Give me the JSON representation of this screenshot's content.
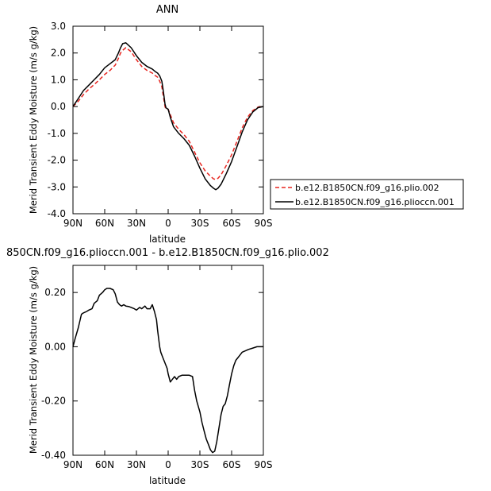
{
  "chart_data": [
    {
      "type": "line",
      "title": "ANN",
      "xlabel": "latitude",
      "ylabel": "Merid Transient Eddy Moisture (m/s g/kg)",
      "xlim": [
        90,
        -90
      ],
      "ylim": [
        -4.0,
        3.0
      ],
      "xticks": [
        90,
        60,
        30,
        0,
        -30,
        -60,
        -90
      ],
      "xtick_labels": [
        "90N",
        "60N",
        "30N",
        "0",
        "30S",
        "60S",
        "90S"
      ],
      "yticks": [
        3.0,
        2.0,
        1.0,
        0.0,
        -1.0,
        -2.0,
        -3.0,
        -4.0
      ],
      "ytick_labels": [
        "3.0",
        "2.0",
        "1.0",
        "0.0",
        "-1.0",
        "-2.0",
        "-3.0",
        "-4.0"
      ],
      "legend_position": "right",
      "series": [
        {
          "name": "b.e12.B1850CN.f09_g16.plio.002",
          "color": "#e8251f",
          "dash": "dashed",
          "x": [
            90,
            85,
            80,
            75,
            70,
            65,
            60,
            55,
            50,
            47,
            45,
            43,
            40,
            35,
            30,
            25,
            20,
            15,
            12,
            10,
            8,
            6,
            5,
            4,
            3,
            2,
            0,
            -2,
            -5,
            -10,
            -15,
            -20,
            -25,
            -30,
            -35,
            -40,
            -43,
            -45,
            -47,
            -50,
            -55,
            -60,
            -65,
            -70,
            -75,
            -80,
            -85,
            -90
          ],
          "y": [
            0.0,
            0.2,
            0.45,
            0.65,
            0.82,
            1.0,
            1.2,
            1.35,
            1.55,
            1.8,
            2.0,
            2.1,
            2.2,
            2.05,
            1.75,
            1.5,
            1.35,
            1.25,
            1.15,
            1.1,
            0.95,
            0.75,
            0.5,
            0.25,
            0.0,
            -0.1,
            -0.1,
            -0.3,
            -0.6,
            -0.85,
            -1.05,
            -1.3,
            -1.7,
            -2.1,
            -2.4,
            -2.6,
            -2.7,
            -2.72,
            -2.68,
            -2.55,
            -2.2,
            -1.8,
            -1.3,
            -0.8,
            -0.4,
            -0.15,
            -0.02,
            0.0
          ]
        },
        {
          "name": "b.e12.B1850CN.f09_g16.plioccn.001",
          "color": "#000000",
          "dash": "solid",
          "x": [
            90,
            85,
            80,
            75,
            70,
            65,
            60,
            55,
            50,
            47,
            45,
            43,
            40,
            35,
            30,
            25,
            20,
            15,
            12,
            10,
            8,
            6,
            5,
            4,
            3,
            2,
            0,
            -2,
            -5,
            -10,
            -15,
            -20,
            -25,
            -30,
            -35,
            -40,
            -43,
            -45,
            -47,
            -50,
            -55,
            -60,
            -65,
            -70,
            -75,
            -80,
            -85,
            -90
          ],
          "y": [
            0.0,
            0.3,
            0.6,
            0.8,
            1.0,
            1.2,
            1.45,
            1.6,
            1.75,
            2.0,
            2.2,
            2.35,
            2.38,
            2.2,
            1.9,
            1.65,
            1.5,
            1.4,
            1.3,
            1.25,
            1.15,
            0.95,
            0.7,
            0.4,
            0.1,
            -0.05,
            -0.1,
            -0.4,
            -0.75,
            -1.0,
            -1.2,
            -1.45,
            -1.85,
            -2.3,
            -2.7,
            -2.95,
            -3.05,
            -3.1,
            -3.05,
            -2.9,
            -2.5,
            -2.05,
            -1.5,
            -0.95,
            -0.5,
            -0.2,
            -0.04,
            0.0
          ]
        }
      ]
    },
    {
      "type": "line",
      "title": "850CN.f09_g16.plioccn.001 - b.e12.B1850CN.f09_g16.plio.002",
      "xlabel": "latitude",
      "ylabel": "Merid Transient Eddy Moisture (m/s g/kg)",
      "xlim": [
        90,
        -90
      ],
      "ylim": [
        -0.4,
        0.3
      ],
      "xticks": [
        90,
        60,
        30,
        0,
        -30,
        -60,
        -90
      ],
      "xtick_labels": [
        "90N",
        "60N",
        "30N",
        "0",
        "30S",
        "60S",
        "90S"
      ],
      "yticks": [
        0.2,
        0.0,
        -0.2,
        -0.4
      ],
      "ytick_labels": [
        "0.20",
        "0.00",
        "-0.20",
        "-0.40"
      ],
      "series": [
        {
          "color": "#000000",
          "dash": "solid",
          "x": [
            90,
            88,
            85,
            82,
            80,
            77,
            75,
            72,
            70,
            67,
            65,
            62,
            60,
            58,
            55,
            52,
            50,
            48,
            46,
            44,
            42,
            40,
            37,
            35,
            32,
            30,
            27,
            25,
            22,
            20,
            17,
            15,
            13,
            11,
            10,
            9,
            8,
            7,
            5,
            3,
            1,
            0,
            -2,
            -4,
            -6,
            -8,
            -10,
            -13,
            -15,
            -18,
            -20,
            -23,
            -25,
            -27,
            -30,
            -32,
            -34,
            -36,
            -38,
            -40,
            -42,
            -44,
            -46,
            -48,
            -50,
            -52,
            -54,
            -56,
            -58,
            -60,
            -62,
            -64,
            -66,
            -68,
            -70,
            -73,
            -76,
            -80,
            -84,
            -87,
            -90
          ],
          "y": [
            0.0,
            0.03,
            0.07,
            0.12,
            0.125,
            0.13,
            0.135,
            0.14,
            0.16,
            0.17,
            0.19,
            0.2,
            0.21,
            0.215,
            0.215,
            0.21,
            0.195,
            0.165,
            0.155,
            0.15,
            0.155,
            0.15,
            0.148,
            0.145,
            0.14,
            0.135,
            0.145,
            0.14,
            0.15,
            0.14,
            0.14,
            0.155,
            0.13,
            0.1,
            0.06,
            0.03,
            0.0,
            -0.02,
            -0.04,
            -0.06,
            -0.08,
            -0.1,
            -0.13,
            -0.12,
            -0.11,
            -0.12,
            -0.11,
            -0.105,
            -0.105,
            -0.105,
            -0.105,
            -0.11,
            -0.16,
            -0.2,
            -0.24,
            -0.28,
            -0.31,
            -0.34,
            -0.36,
            -0.38,
            -0.39,
            -0.385,
            -0.35,
            -0.3,
            -0.25,
            -0.22,
            -0.21,
            -0.18,
            -0.14,
            -0.1,
            -0.07,
            -0.05,
            -0.04,
            -0.03,
            -0.02,
            -0.015,
            -0.01,
            -0.005,
            0.0,
            0.0,
            0.0
          ]
        }
      ]
    }
  ]
}
